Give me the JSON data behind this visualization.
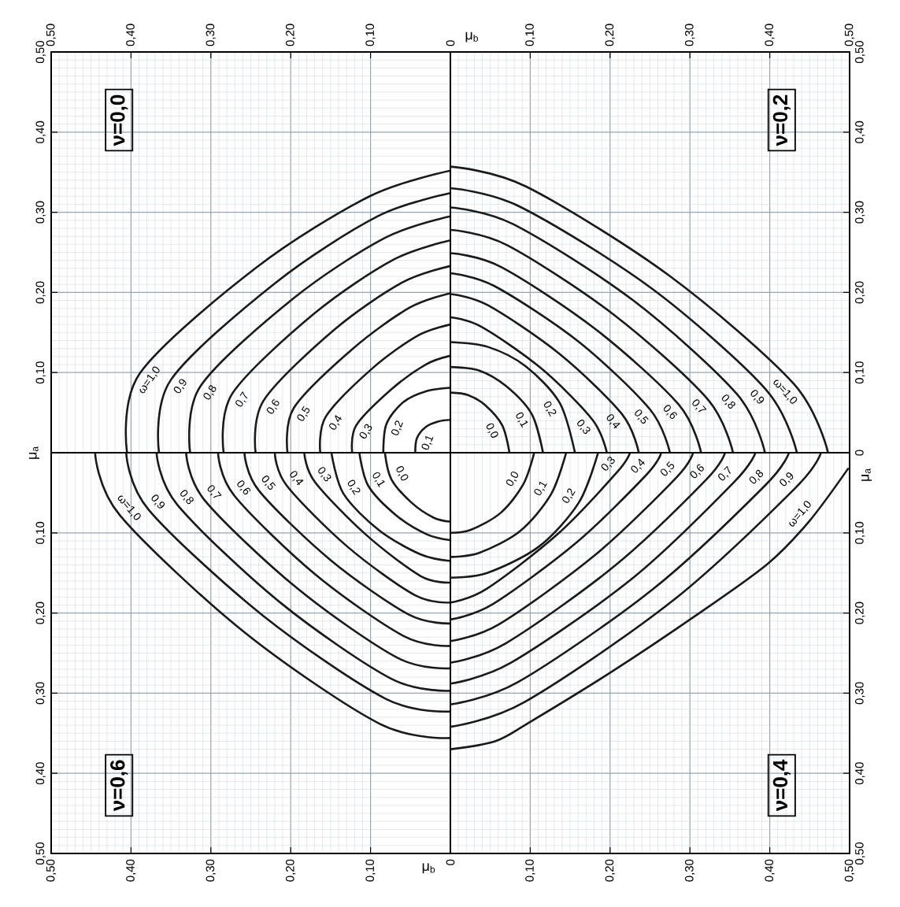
{
  "chart_data": [
    {
      "type": "line",
      "annotations": [
        "ν=0,0"
      ],
      "ylabel": "μ$_{a}$",
      "xlim": [
        0.5,
        0
      ],
      "ylim": [
        0,
        0.5
      ],
      "xticks": [
        {
          "value": 0.5,
          "label": "0,50"
        },
        {
          "value": 0.4,
          "label": "0,40"
        },
        {
          "value": 0.3,
          "label": "0,30"
        },
        {
          "value": 0.2,
          "label": "0,20"
        },
        {
          "value": 0.1,
          "label": "0,10"
        }
      ],
      "yticks": [
        {
          "value": 0.1,
          "label": "0,10"
        },
        {
          "value": 0.2,
          "label": "0,20"
        },
        {
          "value": 0.3,
          "label": "0,30"
        },
        {
          "value": 0.4,
          "label": "0,40"
        },
        {
          "value": 0.5,
          "label": "0,50"
        }
      ],
      "grid": true,
      "marker": "none",
      "line_style": "solid",
      "series": [
        {
          "name": "ω=1,0",
          "color": "#1a1a1a",
          "x": [
            0.405,
            0.389,
            0.243,
            0.101,
            0
          ],
          "values": [
            0,
            0.099,
            0.231,
            0.32,
            0.352
          ]
        },
        {
          "name": "0,9",
          "color": "#1a1a1a",
          "x": [
            0.365,
            0.35,
            0.219,
            0.091,
            0
          ],
          "values": [
            0,
            0.091,
            0.212,
            0.295,
            0.324
          ]
        },
        {
          "name": "0,8",
          "color": "#1a1a1a",
          "x": [
            0.326,
            0.313,
            0.196,
            0.082,
            0
          ],
          "values": [
            0,
            0.083,
            0.193,
            0.268,
            0.295
          ]
        },
        {
          "name": "0,7",
          "color": "#1a1a1a",
          "x": [
            0.284,
            0.273,
            0.17,
            0.071,
            0
          ],
          "values": [
            0,
            0.074,
            0.174,
            0.241,
            0.265
          ]
        },
        {
          "name": "0,6",
          "color": "#1a1a1a",
          "x": [
            0.244,
            0.234,
            0.146,
            0.061,
            0
          ],
          "values": [
            0,
            0.065,
            0.153,
            0.212,
            0.233
          ]
        },
        {
          "name": "0,5",
          "color": "#1a1a1a",
          "x": [
            0.204,
            0.196,
            0.122,
            0.051,
            0
          ],
          "values": [
            0,
            0.056,
            0.13,
            0.181,
            0.199
          ]
        },
        {
          "name": "0,4",
          "color": "#1a1a1a",
          "x": [
            0.163,
            0.156,
            0.098,
            0.041,
            0
          ],
          "values": [
            0,
            0.045,
            0.105,
            0.146,
            0.16
          ]
        },
        {
          "name": "0,3",
          "color": "#1a1a1a",
          "x": [
            0.123,
            0.118,
            0.074,
            0.031,
            0
          ],
          "values": [
            0,
            0.034,
            0.079,
            0.11,
            0.121
          ]
        },
        {
          "name": "0,2",
          "color": "#1a1a1a",
          "x": [
            0.084,
            0.08,
            0.059,
            0.029,
            0
          ],
          "values": [
            0,
            0.036,
            0.063,
            0.077,
            0.081
          ]
        },
        {
          "name": "0,1",
          "color": "#1a1a1a",
          "x": [
            0.044,
            0.042,
            0.031,
            0.015,
            0
          ],
          "values": [
            0,
            0.018,
            0.032,
            0.039,
            0.041
          ]
        }
      ]
    },
    {
      "type": "line",
      "annotations": [
        "ν=0,2"
      ],
      "xlabel": "μ$_{b}$",
      "xlim": [
        0,
        0.5
      ],
      "ylim": [
        0,
        0.5
      ],
      "xticks": [
        0,
        {
          "value": 0.1,
          "label": "0,10"
        },
        {
          "value": 0.2,
          "label": "0,20"
        },
        {
          "value": 0.3,
          "label": "0,30"
        },
        {
          "value": 0.4,
          "label": "0,40"
        },
        {
          "value": 0.5,
          "label": "0,50"
        }
      ],
      "yticks": [
        0,
        {
          "value": 0.1,
          "label": "0,10"
        },
        {
          "value": 0.2,
          "label": "0,20"
        },
        {
          "value": 0.3,
          "label": "0,30"
        },
        {
          "value": 0.4,
          "label": "0,40"
        },
        {
          "value": 0.5,
          "label": "0,50"
        }
      ],
      "grid": true,
      "marker": "none",
      "line_style": "solid",
      "series": [
        {
          "name": "ω=1,0",
          "color": "#1a1a1a",
          "x": [
            0.473,
            0.43,
            0.274,
            0.095,
            0
          ],
          "values": [
            0,
            0.086,
            0.221,
            0.332,
            0.357
          ]
        },
        {
          "name": "0,9",
          "color": "#1a1a1a",
          "x": [
            0.434,
            0.395,
            0.252,
            0.087,
            0
          ],
          "values": [
            0,
            0.079,
            0.205,
            0.307,
            0.33
          ]
        },
        {
          "name": "0,8",
          "color": "#1a1a1a",
          "x": [
            0.394,
            0.359,
            0.229,
            0.079,
            0
          ],
          "values": [
            0,
            0.073,
            0.19,
            0.285,
            0.306
          ]
        },
        {
          "name": "0,7",
          "color": "#1a1a1a",
          "x": [
            0.354,
            0.322,
            0.205,
            0.071,
            0
          ],
          "values": [
            0,
            0.067,
            0.172,
            0.259,
            0.278
          ]
        },
        {
          "name": "0,6",
          "color": "#1a1a1a",
          "x": [
            0.314,
            0.286,
            0.182,
            0.063,
            0
          ],
          "values": [
            0,
            0.06,
            0.154,
            0.232,
            0.249
          ]
        },
        {
          "name": "0,5",
          "color": "#1a1a1a",
          "x": [
            0.275,
            0.25,
            0.16,
            0.055,
            0
          ],
          "values": [
            0,
            0.054,
            0.139,
            0.208,
            0.224
          ]
        },
        {
          "name": "0,4",
          "color": "#1a1a1a",
          "x": [
            0.236,
            0.215,
            0.137,
            0.047,
            0
          ],
          "values": [
            0,
            0.048,
            0.123,
            0.184,
            0.198
          ]
        },
        {
          "name": "0,3",
          "color": "#1a1a1a",
          "x": [
            0.196,
            0.178,
            0.114,
            0.039,
            0
          ],
          "values": [
            0,
            0.041,
            0.105,
            0.157,
            0.169
          ]
        },
        {
          "name": "0,2",
          "color": "#1a1a1a",
          "x": [
            0.156,
            0.137,
            0.094,
            0.047,
            0
          ],
          "values": [
            0,
            0.062,
            0.108,
            0.132,
            0.138
          ]
        },
        {
          "name": "0,1",
          "color": "#1a1a1a",
          "x": [
            0.116,
            0.102,
            0.07,
            0.035,
            0
          ],
          "values": [
            0,
            0.048,
            0.083,
            0.103,
            0.107
          ]
        },
        {
          "name": "0,0",
          "color": "#1a1a1a",
          "x": [
            0.074,
            0.065,
            0.044,
            0.022,
            0
          ],
          "values": [
            0,
            0.034,
            0.059,
            0.072,
            0.075
          ]
        }
      ]
    },
    {
      "type": "line",
      "annotations": [
        "ν=0,6"
      ],
      "xlabel": "μ$_{b}$",
      "xlim": [
        0.5,
        0
      ],
      "ylim": [
        0.5,
        0
      ],
      "xticks": [
        {
          "value": 0.5,
          "label": "0,50"
        },
        {
          "value": 0.4,
          "label": "0,40"
        },
        {
          "value": 0.3,
          "label": "0,30"
        },
        {
          "value": 0.2,
          "label": "0,20"
        },
        {
          "value": 0.1,
          "label": "0,10"
        }
      ],
      "yticks": [
        {
          "value": 0.1,
          "label": "0,10"
        },
        {
          "value": 0.2,
          "label": "0,20"
        },
        {
          "value": 0.3,
          "label": "0,30"
        },
        {
          "value": 0.4,
          "label": "0,40"
        },
        {
          "value": 0.5,
          "label": "0,50"
        }
      ],
      "grid": true,
      "marker": "none",
      "line_style": "solid",
      "series": [
        {
          "name": "ω=1,0",
          "color": "#1a1a1a",
          "x": [
            0.445,
            0.414,
            0.258,
            0.089,
            0
          ],
          "values": [
            0,
            0.078,
            0.224,
            0.338,
            0.356
          ]
        },
        {
          "name": "0,9",
          "color": "#1a1a1a",
          "x": [
            0.406,
            0.378,
            0.235,
            0.081,
            0
          ],
          "values": [
            0,
            0.071,
            0.203,
            0.307,
            0.323
          ]
        },
        {
          "name": "0,8",
          "color": "#1a1a1a",
          "x": [
            0.368,
            0.342,
            0.213,
            0.074,
            0
          ],
          "values": [
            0,
            0.065,
            0.187,
            0.282,
            0.297
          ]
        },
        {
          "name": "0,7",
          "color": "#1a1a1a",
          "x": [
            0.331,
            0.308,
            0.192,
            0.066,
            0
          ],
          "values": [
            0,
            0.059,
            0.169,
            0.256,
            0.269
          ]
        },
        {
          "name": "0,6",
          "color": "#1a1a1a",
          "x": [
            0.291,
            0.271,
            0.169,
            0.058,
            0
          ],
          "values": [
            0,
            0.053,
            0.152,
            0.229,
            0.241
          ]
        },
        {
          "name": "0,5",
          "color": "#1a1a1a",
          "x": [
            0.258,
            0.24,
            0.15,
            0.052,
            0
          ],
          "values": [
            0,
            0.047,
            0.134,
            0.202,
            0.213
          ]
        },
        {
          "name": "0,4",
          "color": "#1a1a1a",
          "x": [
            0.22,
            0.205,
            0.128,
            0.044,
            0
          ],
          "values": [
            0,
            0.041,
            0.118,
            0.178,
            0.187
          ]
        },
        {
          "name": "0,3",
          "color": "#1a1a1a",
          "x": [
            0.183,
            0.17,
            0.106,
            0.037,
            0
          ],
          "values": [
            0,
            0.036,
            0.102,
            0.154,
            0.162
          ]
        },
        {
          "name": "0,2",
          "color": "#1a1a1a",
          "x": [
            0.149,
            0.134,
            0.089,
            0.037,
            0
          ],
          "values": [
            0,
            0.051,
            0.097,
            0.127,
            0.135
          ]
        },
        {
          "name": "0,1",
          "color": "#1a1a1a",
          "x": [
            0.114,
            0.103,
            0.068,
            0.029,
            0
          ],
          "values": [
            0,
            0.041,
            0.078,
            0.102,
            0.109
          ]
        },
        {
          "name": "0,0",
          "color": "#1a1a1a",
          "x": [
            0.082,
            0.074,
            0.049,
            0.021,
            0
          ],
          "values": [
            0,
            0.033,
            0.062,
            0.081,
            0.086
          ]
        }
      ]
    },
    {
      "type": "line",
      "annotations": [
        "ν=0,4"
      ],
      "ylabel": "μ$_{a}$",
      "xlim": [
        0,
        0.5
      ],
      "ylim": [
        0.5,
        0
      ],
      "xticks": [
        0,
        {
          "value": 0.1,
          "label": "0,10"
        },
        {
          "value": 0.2,
          "label": "0,20"
        },
        {
          "value": 0.3,
          "label": "0,30"
        },
        {
          "value": 0.4,
          "label": "0,40"
        },
        {
          "value": 0.5,
          "label": "0,50"
        }
      ],
      "yticks": [
        {
          "value": 0.1,
          "label": "0,10"
        },
        {
          "value": 0.2,
          "label": "0,20"
        },
        {
          "value": 0.3,
          "label": "0,30"
        },
        {
          "value": 0.4,
          "label": "0,40"
        },
        {
          "value": 0.5,
          "label": "0,50"
        }
      ],
      "grid": true,
      "marker": "none",
      "line_style": "solid",
      "series": [
        {
          "name": "ω=1,0",
          "color": "#1a1a1a",
          "x": [
            0.498,
            0.449,
            0.397,
            0.309,
            0.204,
            0.098,
            0.056,
            0
          ],
          "values": [
            0.02,
            0.086,
            0.139,
            0.202,
            0.272,
            0.337,
            0.36,
            0.37
          ]
        },
        {
          "name": "0,9",
          "color": "#1a1a1a",
          "x": [
            0.464,
            0.432,
            0.278,
            0.093,
            0
          ],
          "values": [
            0,
            0.044,
            0.185,
            0.311,
            0.342
          ]
        },
        {
          "name": "0,8",
          "color": "#1a1a1a",
          "x": [
            0.424,
            0.394,
            0.254,
            0.085,
            0
          ],
          "values": [
            0,
            0.041,
            0.17,
            0.286,
            0.314
          ]
        },
        {
          "name": "0,7",
          "color": "#1a1a1a",
          "x": [
            0.382,
            0.355,
            0.229,
            0.076,
            0
          ],
          "values": [
            0,
            0.037,
            0.156,
            0.262,
            0.288
          ]
        },
        {
          "name": "0,6",
          "color": "#1a1a1a",
          "x": [
            0.344,
            0.32,
            0.206,
            0.069,
            0
          ],
          "values": [
            0,
            0.034,
            0.141,
            0.238,
            0.262
          ]
        },
        {
          "name": "0,5",
          "color": "#1a1a1a",
          "x": [
            0.304,
            0.283,
            0.182,
            0.061,
            0
          ],
          "values": [
            0,
            0.031,
            0.127,
            0.214,
            0.235
          ]
        },
        {
          "name": "0,4",
          "color": "#1a1a1a",
          "x": [
            0.264,
            0.246,
            0.158,
            0.053,
            0
          ],
          "values": [
            0,
            0.027,
            0.112,
            0.189,
            0.208
          ]
        },
        {
          "name": "0,3",
          "color": "#1a1a1a",
          "x": [
            0.225,
            0.209,
            0.135,
            0.045,
            0
          ],
          "values": [
            0,
            0.024,
            0.101,
            0.17,
            0.187
          ]
        },
        {
          "name": "0,2",
          "color": "#1a1a1a",
          "x": [
            0.185,
            0.161,
            0.111,
            0.046,
            0
          ],
          "values": [
            0,
            0.062,
            0.117,
            0.15,
            0.156
          ]
        },
        {
          "name": "0,1",
          "color": "#1a1a1a",
          "x": [
            0.145,
            0.126,
            0.087,
            0.036,
            0
          ],
          "values": [
            0,
            0.052,
            0.098,
            0.125,
            0.13
          ]
        },
        {
          "name": "0,0",
          "color": "#1a1a1a",
          "x": [
            0.105,
            0.091,
            0.063,
            0.026,
            0
          ],
          "values": [
            0,
            0.04,
            0.075,
            0.096,
            0.1
          ]
        }
      ]
    }
  ]
}
